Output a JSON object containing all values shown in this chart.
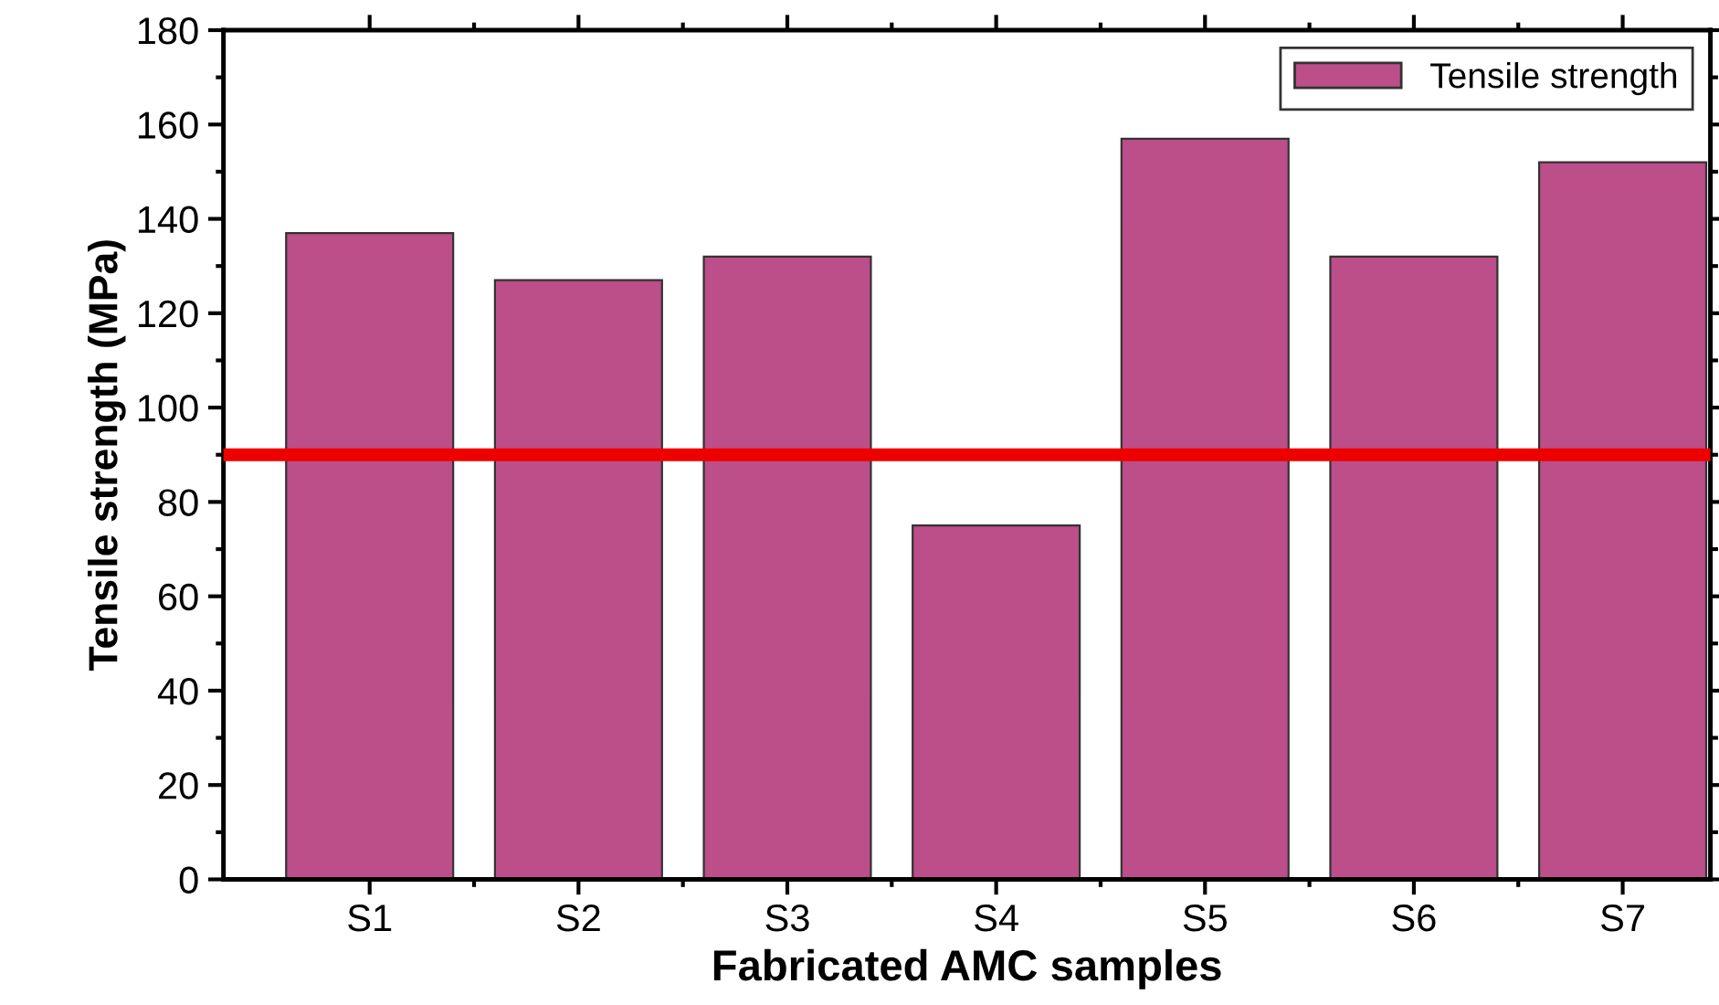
{
  "chart_data": {
    "type": "bar",
    "xlabel": "Fabricated AMC samples",
    "ylabel": "Tensile strength (MPa)",
    "categories": [
      "S1",
      "S2",
      "S3",
      "S4",
      "S5",
      "S6",
      "S7"
    ],
    "series": [
      {
        "name": "Tensile strength",
        "color": "#bc4e89",
        "values": [
          137,
          127,
          132,
          75,
          157,
          132,
          152
        ]
      }
    ],
    "ylim": [
      0,
      180
    ],
    "yticks": [
      0,
      20,
      40,
      60,
      80,
      100,
      120,
      140,
      160,
      180
    ],
    "ref_lines": [
      {
        "axis": "y",
        "value": 90,
        "color": "#ee0000",
        "line_style": "solid"
      }
    ],
    "legend": "top right",
    "grid": false
  }
}
